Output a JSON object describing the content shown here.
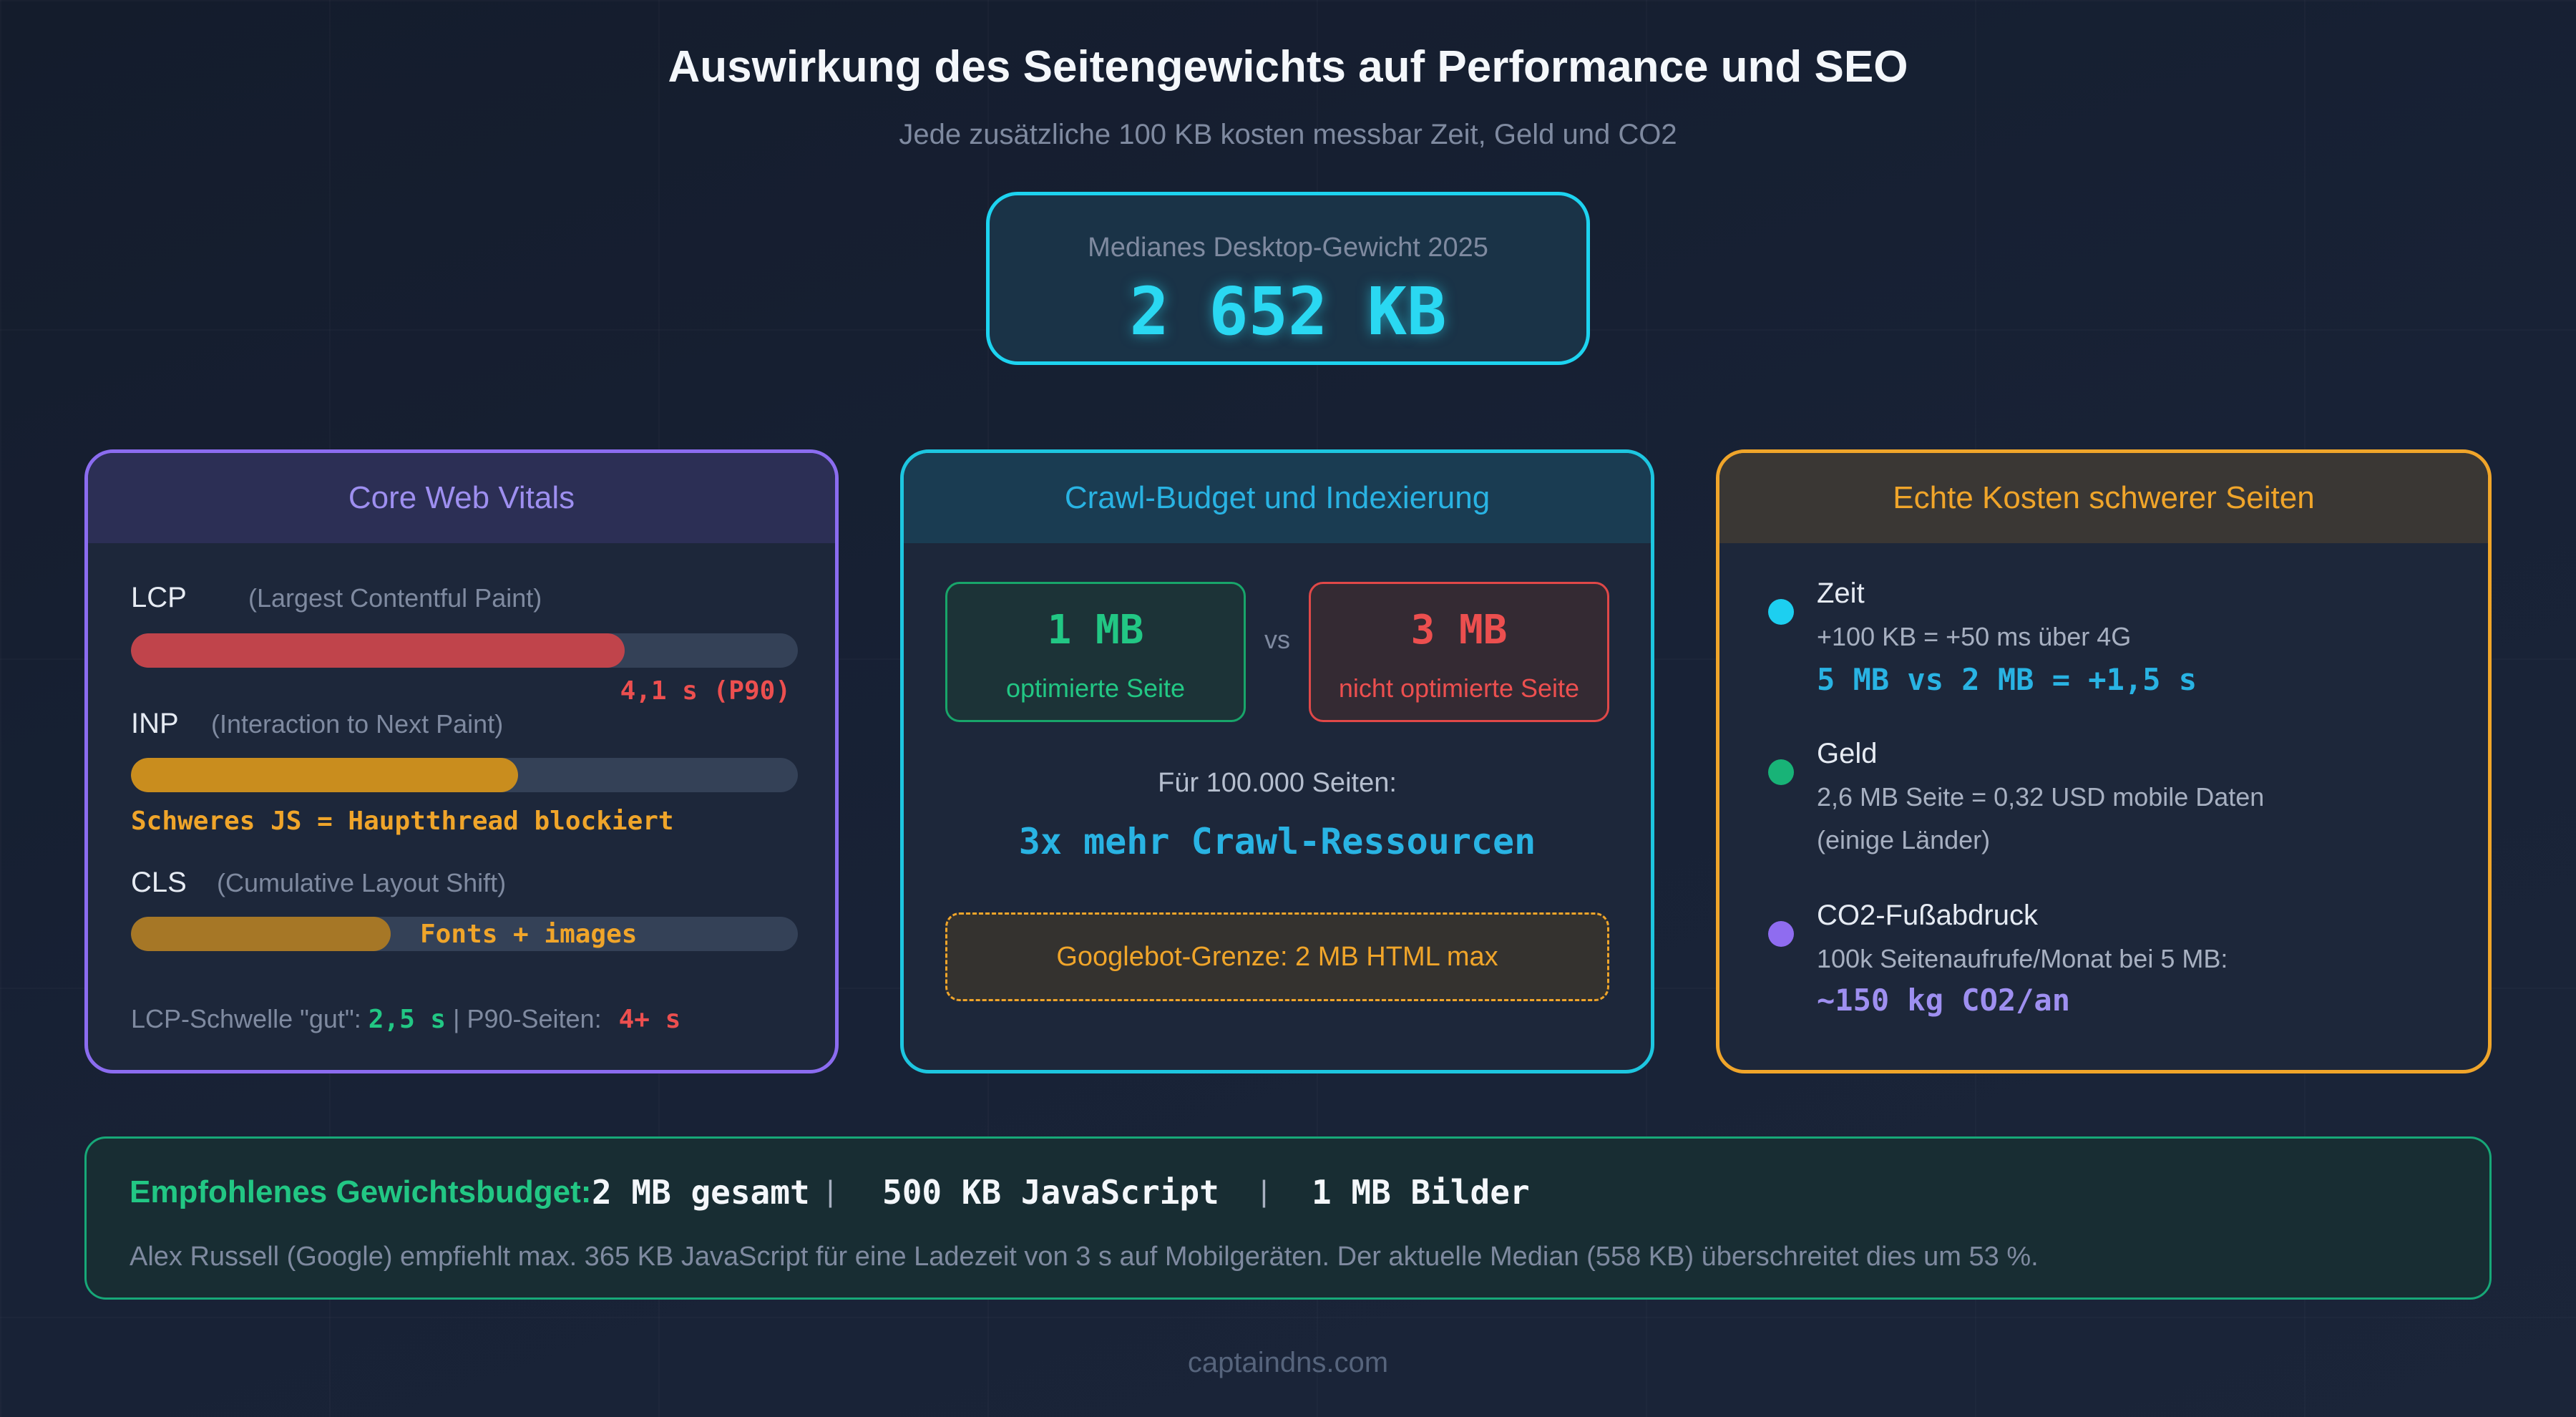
{
  "header": {
    "title": "Auswirkung des Seitengewichts auf Performance und SEO",
    "subtitle": "Jede zusätzliche 100 KB kosten messbar Zeit, Geld und CO2"
  },
  "median": {
    "label": "Medianes Desktop-Gewicht 2025",
    "value": "2 652 KB"
  },
  "core_web_vitals": {
    "title": "Core Web Vitals",
    "lcp": {
      "name": "LCP",
      "desc": "(Largest Contentful Paint)",
      "note": "4,1 s (P90)",
      "fill_fraction": 0.74,
      "color": "#c0444b"
    },
    "inp": {
      "name": "INP",
      "desc": "(Interaction to Next Paint)",
      "note": "Schweres JS = Hauptthread blockiert",
      "fill_fraction": 0.58,
      "color": "#c98d1e"
    },
    "cls": {
      "name": "CLS",
      "desc": "(Cumulative Layout Shift)",
      "note": "Fonts + images",
      "fill_fraction": 0.39,
      "color": "#a67726"
    },
    "threshold": {
      "label": "LCP-Schwelle \"gut\":",
      "good_value": "2,5 s",
      "separator": "| P90-Seiten:",
      "p90_value": "4+ s"
    }
  },
  "crawl": {
    "title": "Crawl-Budget und Indexierung",
    "optimized": {
      "value": "1 MB",
      "label": "optimierte Seite"
    },
    "vs": "vs",
    "unoptimized": {
      "value": "3 MB",
      "label": "nicht optimierte Seite"
    },
    "pages": "Für 100.000 Seiten:",
    "result": "3x mehr Crawl-Ressourcen",
    "googlebot": "Googlebot-Grenze: 2 MB HTML max"
  },
  "costs": {
    "title": "Echte Kosten schwerer Seiten",
    "time": {
      "title": "Zeit",
      "text": "+100 KB = +50 ms über 4G",
      "highlight": "5 MB vs 2 MB = +1,5 s",
      "color": "#1dcff0"
    },
    "money": {
      "title": "Geld",
      "text": "2,6 MB Seite = 0,32 USD mobile Daten",
      "text2": "(einige Länder)",
      "color": "#18b377"
    },
    "co2": {
      "title": "CO2-Fußabdruck",
      "text": "100k Seitenaufrufe/Monat bei 5 MB:",
      "highlight": "~150 kg CO2/an",
      "color": "#8f6cf0"
    }
  },
  "budget": {
    "label": "Empfohlenes Gewichtsbudget:",
    "total": "2 MB gesamt",
    "sep": "|",
    "js": "500 KB JavaScript",
    "images": "1 MB Bilder",
    "note": "Alex Russell (Google) empfiehlt max. 365 KB JavaScript für eine Ladezeit von 3 s auf Mobilgeräten. Der aktuelle Median (558 KB) überschreitet dies um 53 %."
  },
  "footer": "captaindns.com"
}
